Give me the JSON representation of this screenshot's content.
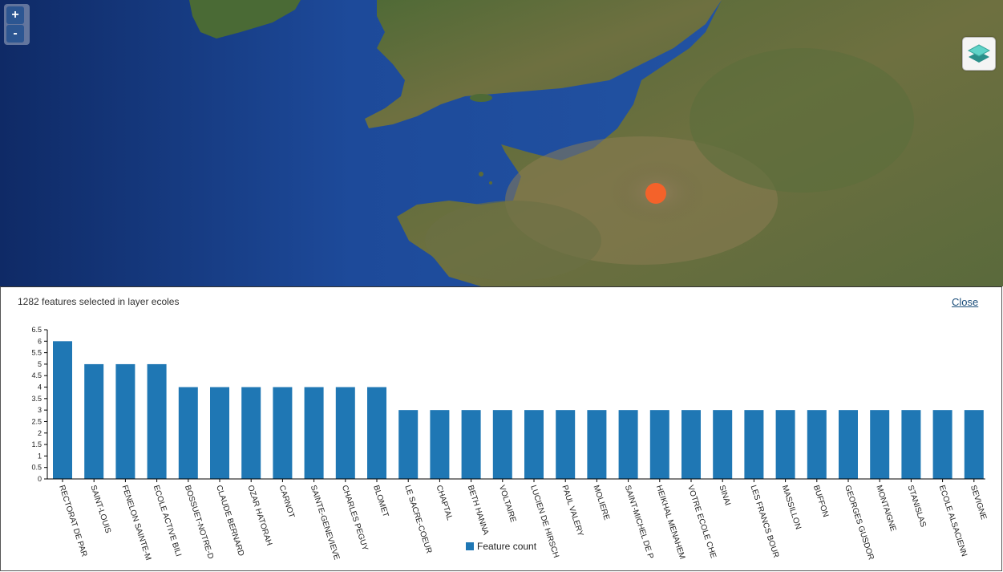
{
  "map": {
    "zoom_in_label": "+",
    "zoom_out_label": "-",
    "marker_color": "#f4622a",
    "layer_switcher_icon": "layers-icon"
  },
  "panel": {
    "title": "1282 features selected in layer ecoles",
    "close_label": "Close"
  },
  "chart_data": {
    "type": "bar",
    "categories": [
      "RECTORAT DE PAR",
      "SAINT-LOUIS",
      "FENELON SAINTE-M",
      "ECOLE ACTIVE BILI",
      "BOSSUET-NOTRE-D",
      "CLAUDE BERNARD",
      "OZAR HATORAH",
      "CARNOT",
      "SAINTE-GENEVIEVE",
      "CHARLES PEGUY",
      "BLOMET",
      "LE SACRE-COEUR",
      "CHAPTAL",
      "BETH HANNA",
      "VOLTAIRE",
      "LUCIEN DE HIRSCH",
      "PAUL VALERY",
      "MOLIERE",
      "SAINT-MICHEL DE P",
      "HEIKHAL MENAHEM",
      "VOTRE ECOLE CHE",
      "SINAI",
      "LES FRANCS BOUR",
      "MASSILLON",
      "BUFFON",
      "GEORGES GUSDOR",
      "MONTAIGNE",
      "STANISLAS",
      "ECOLE ALSACIENN",
      "SEVIGNE"
    ],
    "series": [
      {
        "name": "Feature count",
        "values": [
          6,
          5,
          5,
          5,
          4,
          4,
          4,
          4,
          4,
          4,
          4,
          3,
          3,
          3,
          3,
          3,
          3,
          3,
          3,
          3,
          3,
          3,
          3,
          3,
          3,
          3,
          3,
          3,
          3,
          3
        ]
      }
    ],
    "yticks": [
      "0",
      "0.5",
      "1",
      "1.5",
      "2",
      "2.5",
      "3",
      "3.5",
      "4",
      "4.5",
      "5",
      "5.5",
      "6",
      "6.5"
    ],
    "ylim": [
      0,
      6.5
    ],
    "bar_color": "#1f77b4",
    "legend_position": "bottom-center"
  }
}
